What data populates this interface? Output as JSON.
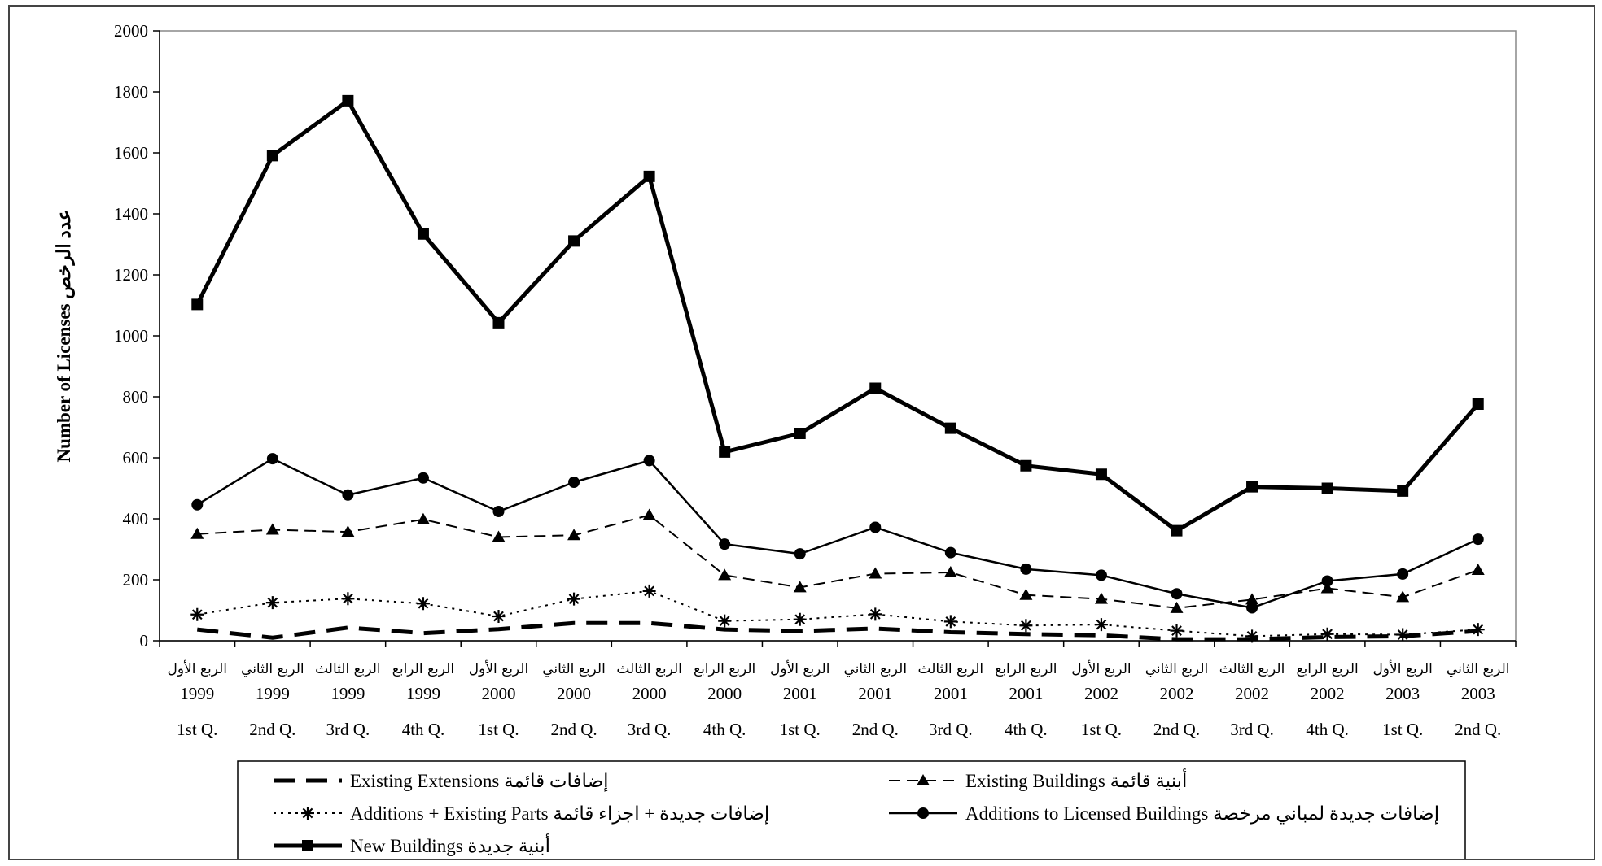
{
  "chart_data": {
    "type": "line",
    "ylabel": "Number of Licenses عدد الرخص",
    "xlabel": "",
    "ylim": [
      0,
      2000
    ],
    "yticks": [
      0,
      200,
      400,
      600,
      800,
      1000,
      1200,
      1400,
      1600,
      1800,
      2000
    ],
    "grid": false,
    "legend_position": "bottom",
    "categories": [
      {
        "arabic": "الربع الأول",
        "year": "1999",
        "quarter": "1st Q."
      },
      {
        "arabic": "الربع الثاني",
        "year": "1999",
        "quarter": "2nd Q."
      },
      {
        "arabic": "الربع الثالث",
        "year": "1999",
        "quarter": "3rd Q."
      },
      {
        "arabic": "الربع الرابع",
        "year": "1999",
        "quarter": "4th Q."
      },
      {
        "arabic": "الربع الأول",
        "year": "2000",
        "quarter": "1st Q."
      },
      {
        "arabic": "الربع الثاني",
        "year": "2000",
        "quarter": "2nd Q."
      },
      {
        "arabic": "الربع الثالث",
        "year": "2000",
        "quarter": "3rd Q."
      },
      {
        "arabic": "الربع الرابع",
        "year": "2000",
        "quarter": "4th Q."
      },
      {
        "arabic": "الربع الأول",
        "year": "2001",
        "quarter": "1st Q."
      },
      {
        "arabic": "الربع الثاني",
        "year": "2001",
        "quarter": "2nd Q."
      },
      {
        "arabic": "الربع الثالث",
        "year": "2001",
        "quarter": "3rd Q."
      },
      {
        "arabic": "الربع الرابع",
        "year": "2001",
        "quarter": "4th Q."
      },
      {
        "arabic": "الربع الأول",
        "year": "2002",
        "quarter": "1st Q."
      },
      {
        "arabic": "الربع الثاني",
        "year": "2002",
        "quarter": "2nd Q."
      },
      {
        "arabic": "الربع الثالث",
        "year": "2002",
        "quarter": "3rd Q."
      },
      {
        "arabic": "الربع الرابع",
        "year": "2002",
        "quarter": "4th Q."
      },
      {
        "arabic": "الربع الأول",
        "year": "2003",
        "quarter": "1st Q."
      },
      {
        "arabic": "الربع الثاني",
        "year": "2003",
        "quarter": "2nd Q."
      }
    ],
    "series": [
      {
        "name": "Existing Extensions إضافات قائمة",
        "key": "existing-extensions",
        "style": "long-dash",
        "marker": "none",
        "values": [
          37,
          10,
          43,
          25,
          38,
          58,
          58,
          37,
          32,
          40,
          28,
          22,
          18,
          5,
          5,
          12,
          15,
          32
        ]
      },
      {
        "name": "Existing Buildings أبنية قائمة",
        "key": "existing-buildings",
        "style": "dash",
        "marker": "triangle",
        "values": [
          350,
          364,
          357,
          398,
          340,
          346,
          412,
          215,
          175,
          220,
          224,
          150,
          137,
          107,
          135,
          172,
          143,
          232
        ]
      },
      {
        "name": "Additions + Existing  Parts إضافات جديدة + اجزاء قائمة",
        "key": "additions-existing-parts",
        "style": "dot",
        "marker": "star",
        "values": [
          86,
          125,
          138,
          122,
          80,
          137,
          163,
          65,
          70,
          87,
          63,
          50,
          53,
          33,
          15,
          22,
          20,
          37
        ]
      },
      {
        "name": "Additions to Licensed Buildings إضافات جديدة لمباني مرخصة",
        "key": "additions-licensed",
        "style": "solid",
        "marker": "circle",
        "values": [
          446,
          597,
          478,
          534,
          424,
          520,
          591,
          317,
          285,
          372,
          289,
          235,
          215,
          154,
          108,
          196,
          219,
          333
        ]
      },
      {
        "name": "New  Buildings أبنية جديدة",
        "key": "new-buildings",
        "style": "thick-solid",
        "marker": "square",
        "values": [
          1103,
          1591,
          1771,
          1334,
          1043,
          1311,
          1523,
          619,
          680,
          828,
          697,
          574,
          546,
          361,
          505,
          500,
          491,
          776
        ]
      }
    ]
  }
}
